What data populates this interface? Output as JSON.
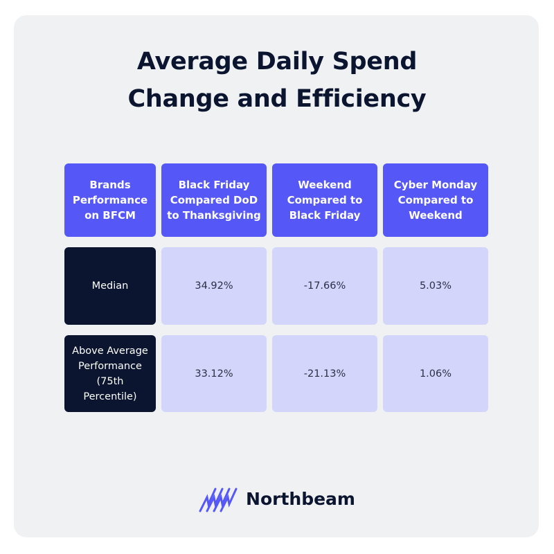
{
  "header": {
    "title": "Average Daily Spend Change and Efficiency"
  },
  "table": {
    "columns": [
      "Brands Performance on BFCM",
      "Black Friday Compared DoD to Thanksgiving",
      "Weekend Compared to Black Friday",
      "Cyber Monday Compared to Weekend"
    ],
    "rows": [
      [
        "Median",
        "34.92%",
        "-17.66%",
        "5.03%"
      ],
      [
        "Above Average Performance (75th Percentile)",
        "33.12%",
        "-21.13%",
        "1.06%"
      ]
    ]
  },
  "footer": {
    "brand": "Northbeam"
  }
}
